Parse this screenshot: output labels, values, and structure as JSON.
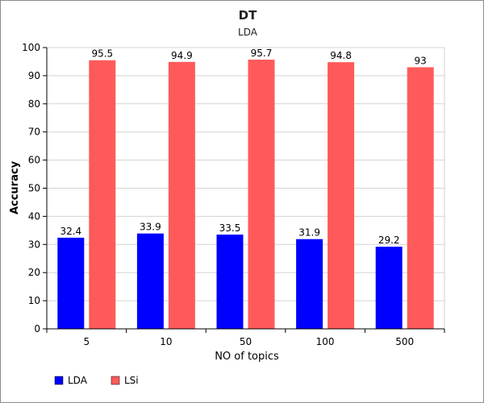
{
  "chart_data": {
    "type": "bar",
    "title": "DT",
    "subtitle": "LDA",
    "xlabel": "NO of topics",
    "ylabel": "Accuracy",
    "categories": [
      "5",
      "10",
      "50",
      "100",
      "500"
    ],
    "series": [
      {
        "name": "LDA",
        "color": "#0000ff",
        "values": [
          32.4,
          33.9,
          33.5,
          31.9,
          29.2
        ],
        "labels": [
          "32.4",
          "33.9",
          "33.5",
          "31.9",
          "29.2"
        ]
      },
      {
        "name": "LSi",
        "color": "#ff5a5a",
        "values": [
          95.5,
          94.9,
          95.7,
          94.8,
          93
        ],
        "labels": [
          "95.5",
          "94.9",
          "95.7",
          "94.8",
          "93"
        ]
      }
    ],
    "ylim": [
      0,
      100
    ],
    "yticks": [
      0,
      10,
      20,
      30,
      40,
      50,
      60,
      70,
      80,
      90,
      100
    ],
    "grid": true,
    "legend_position": "bottom-left"
  }
}
